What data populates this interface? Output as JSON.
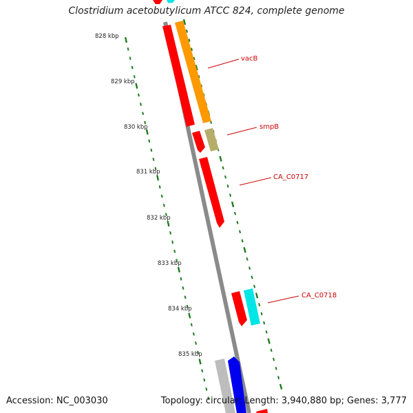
{
  "title": "Clostridium acetobutylicum ATCC 824, complete genome",
  "footer": {
    "accession": "Accession: NC_003030",
    "summary": "Topology: circular; Length: 3,940,880 bp; Genes: 3,777"
  },
  "colors": {
    "tick": "#1e7a1e",
    "backbone": "#8a8a8a",
    "label": "#cc0000",
    "gene_red": "#ff0000",
    "gene_orange": "#ff9900",
    "gene_khaki": "#b7ad6a",
    "gene_cyan": "#00e5e5",
    "gene_grey": "#bdbdbd",
    "gene_blue": "#0000ee"
  },
  "scale": {
    "unit": "kbp",
    "labels": [
      "828 kbp",
      "829 kbp",
      "830 kbp",
      "831 kbp",
      "832 kbp",
      "833 kbp",
      "834 kbp",
      "835 kbp"
    ]
  },
  "features": [
    {
      "id": "vacB",
      "label": "vacB",
      "color": "gene_orange",
      "strand": "outer"
    },
    {
      "id": "smpB",
      "label": "smpB",
      "color": "gene_khaki",
      "strand": "outer"
    },
    {
      "id": "CA_C0717",
      "label": "CA_C0717",
      "color": "gene_red",
      "strand": "inner"
    },
    {
      "id": "CA_C0718",
      "label": "CA_C0718",
      "color": "gene_cyan",
      "strand": "outer"
    }
  ]
}
